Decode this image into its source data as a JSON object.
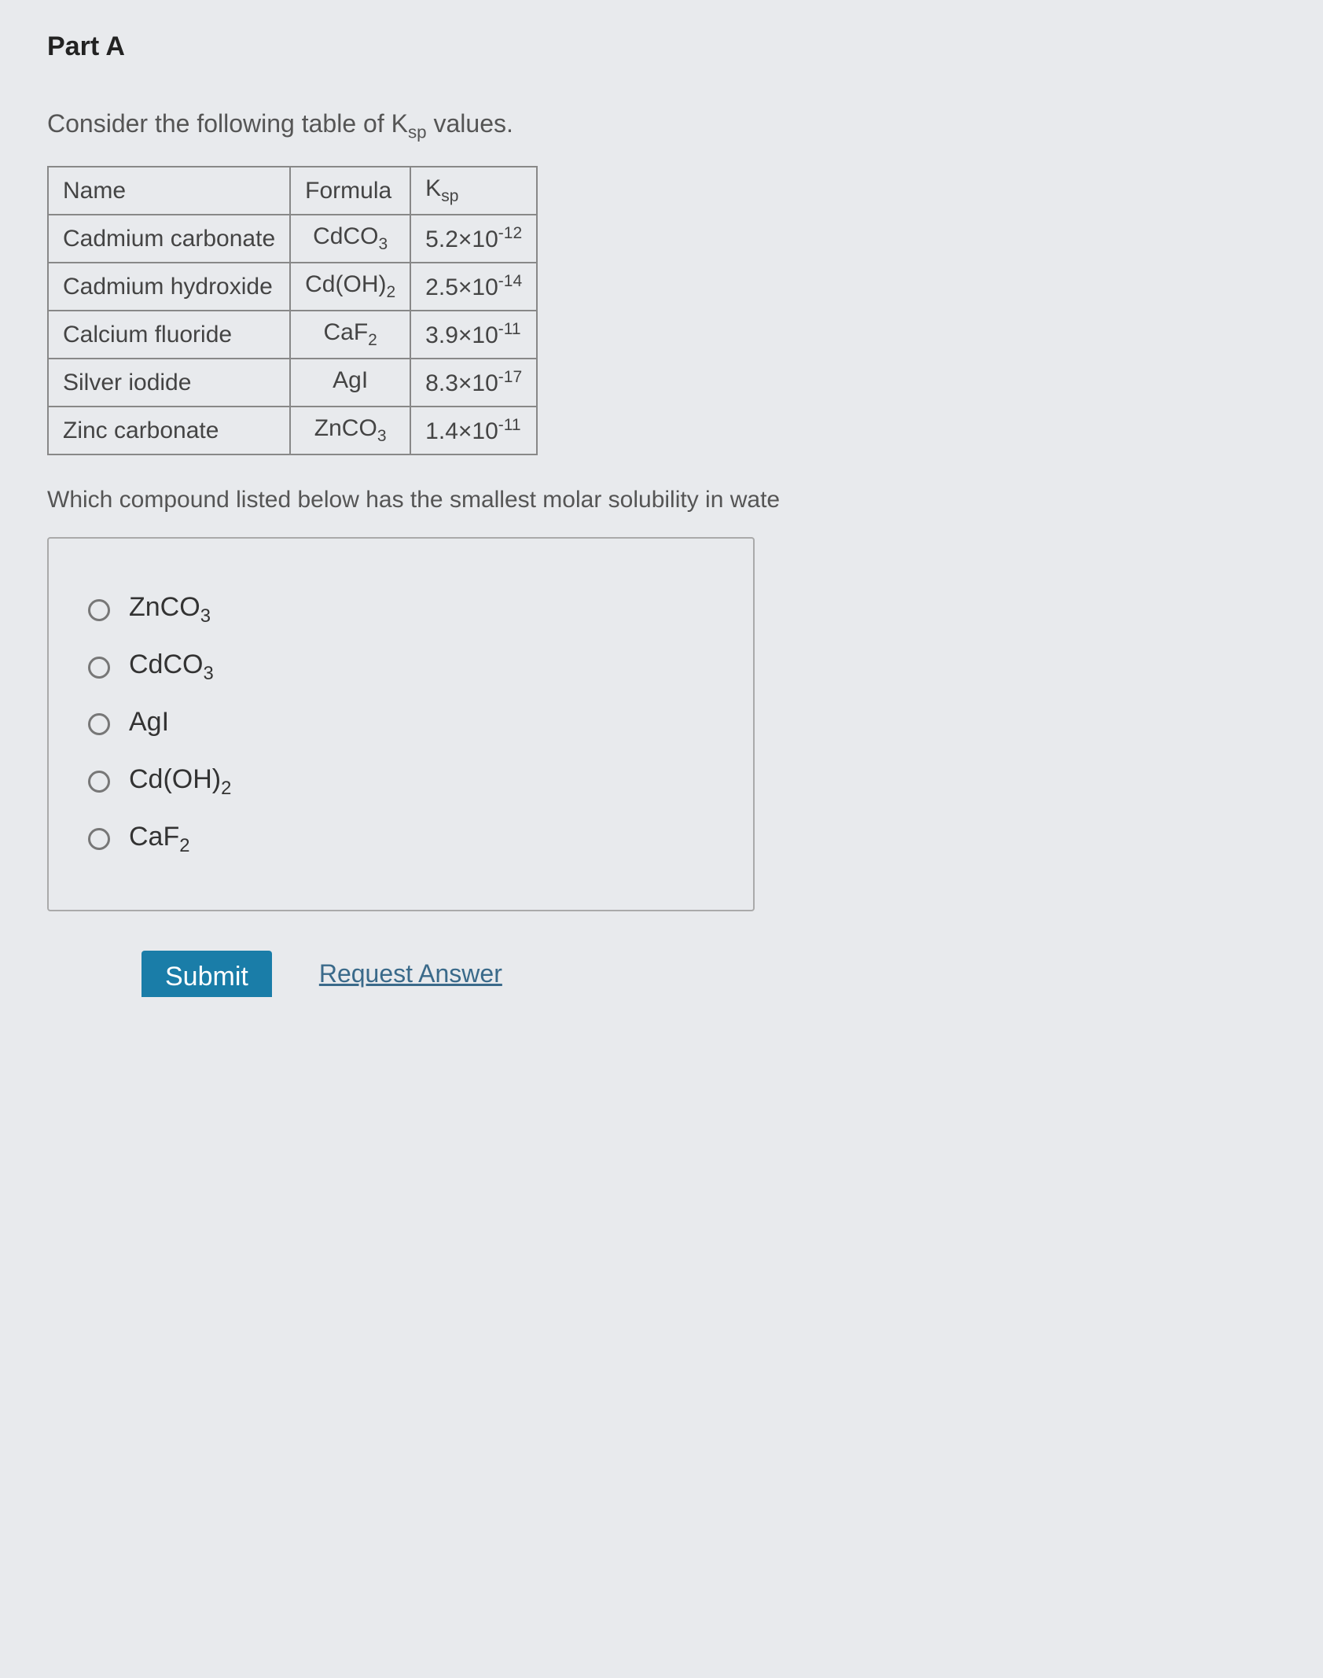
{
  "part_label": "Part A",
  "prompt_prefix": "Consider the following table of ",
  "prompt_symbol_base": "K",
  "prompt_symbol_sub": "sp",
  "prompt_suffix": " values.",
  "table": {
    "headers": {
      "name": "Name",
      "formula": "Formula",
      "ksp_base": "K",
      "ksp_sub": "sp"
    },
    "rows": [
      {
        "name": "Cadmium carbonate",
        "formula_base": "CdCO",
        "formula_sub": "3",
        "coef": "5.2",
        "exp": "-12"
      },
      {
        "name": "Cadmium hydroxide",
        "formula_base": "Cd(OH)",
        "formula_sub": "2",
        "coef": "2.5",
        "exp": "-14"
      },
      {
        "name": "Calcium fluoride",
        "formula_base": "CaF",
        "formula_sub": "2",
        "coef": "3.9",
        "exp": "-11"
      },
      {
        "name": "Silver iodide",
        "formula_base": "AgI",
        "formula_sub": "",
        "coef": "8.3",
        "exp": "-17"
      },
      {
        "name": "Zinc carbonate",
        "formula_base": "ZnCO",
        "formula_sub": "3",
        "coef": "1.4",
        "exp": "-11"
      }
    ]
  },
  "question": "Which compound listed below has the smallest molar solubility in wate",
  "options": [
    {
      "base": "ZnCO",
      "sub": "3"
    },
    {
      "base": "CdCO",
      "sub": "3"
    },
    {
      "base": "AgI",
      "sub": ""
    },
    {
      "base": "Cd(OH)",
      "sub": "2"
    },
    {
      "base": "CaF",
      "sub": "2"
    }
  ],
  "actions": {
    "submit": "Submit",
    "request": "Request Answer"
  },
  "colors": {
    "background": "#e8eaed",
    "text": "#333",
    "border": "#888",
    "submit_bg": "#1a7da8",
    "link": "#3a6a8a"
  }
}
